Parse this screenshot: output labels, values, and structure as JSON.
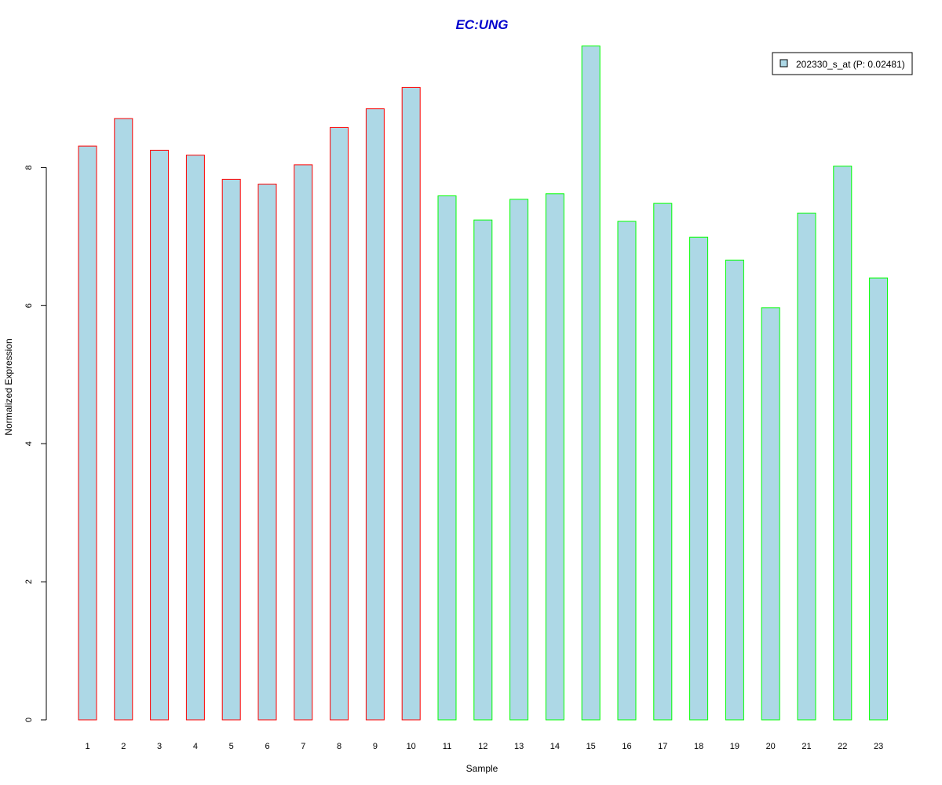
{
  "chart_data": {
    "type": "bar",
    "title": "EC:UNG",
    "xlabel": "Sample",
    "ylabel": "Normalized Expression",
    "ylim": [
      0,
      9.9
    ],
    "yticks": [
      0,
      2,
      4,
      6,
      8
    ],
    "grid": false,
    "legend_position": "top-right",
    "categories": [
      "1",
      "2",
      "3",
      "4",
      "5",
      "6",
      "7",
      "8",
      "9",
      "10",
      "11",
      "12",
      "13",
      "14",
      "15",
      "16",
      "17",
      "18",
      "19",
      "20",
      "21",
      "22",
      "23"
    ],
    "series": [
      {
        "name": "202330_s_at (P: 0.02481)",
        "values": [
          8.31,
          8.71,
          8.25,
          8.18,
          7.83,
          7.76,
          8.04,
          8.58,
          8.85,
          9.16,
          7.59,
          7.24,
          7.54,
          7.62,
          9.76,
          7.22,
          7.48,
          6.99,
          6.66,
          5.97,
          7.34,
          8.02,
          6.4
        ],
        "fill": "#ADD8E6",
        "border_colors": [
          "#ff0000",
          "#ff0000",
          "#ff0000",
          "#ff0000",
          "#ff0000",
          "#ff0000",
          "#ff0000",
          "#ff0000",
          "#ff0000",
          "#ff0000",
          "#00ff00",
          "#00ff00",
          "#00ff00",
          "#00ff00",
          "#00ff00",
          "#00ff00",
          "#00ff00",
          "#00ff00",
          "#00ff00",
          "#00ff00",
          "#00ff00",
          "#00ff00",
          "#00ff00"
        ]
      }
    ],
    "title_color": "#0000CD"
  }
}
